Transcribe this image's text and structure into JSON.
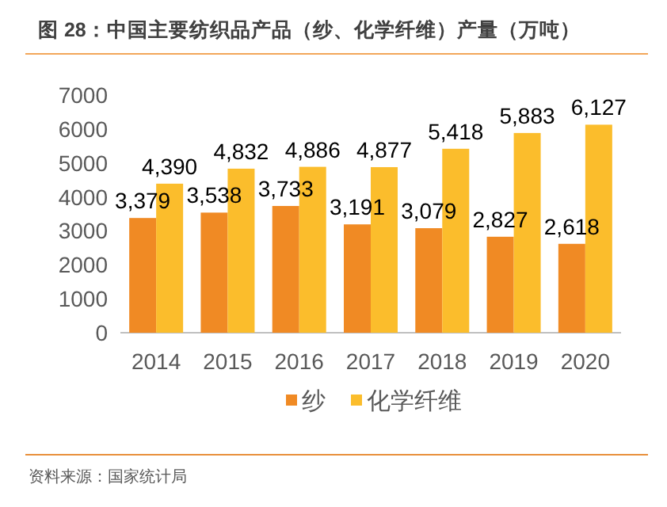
{
  "chart_data": {
    "type": "bar",
    "title": "图 28：中国主要纺织品产品（纱、化学纤维）产量（万吨）",
    "categories": [
      "2014",
      "2015",
      "2016",
      "2017",
      "2018",
      "2019",
      "2020"
    ],
    "series": [
      {
        "name": "纱",
        "color": "#f08a24",
        "values": [
          3379,
          3538,
          3733,
          3191,
          3079,
          2827,
          2618
        ],
        "value_labels": [
          "3,379",
          "3,538",
          "3,733",
          "3,191",
          "3,079",
          "2,827",
          "2,618"
        ]
      },
      {
        "name": "化学纤维",
        "color": "#fbbd2c",
        "values": [
          4390,
          4832,
          4886,
          4877,
          5418,
          5883,
          6127
        ],
        "value_labels": [
          "4,390",
          "4,832",
          "4,886",
          "4,877",
          "5,418",
          "5,883",
          "6,127"
        ]
      }
    ],
    "ylim": [
      0,
      7000
    ],
    "yticks": [
      0,
      1000,
      2000,
      3000,
      4000,
      5000,
      6000,
      7000
    ],
    "legend": "bottom",
    "annotations": [
      "资料来源：国家统计局"
    ]
  }
}
